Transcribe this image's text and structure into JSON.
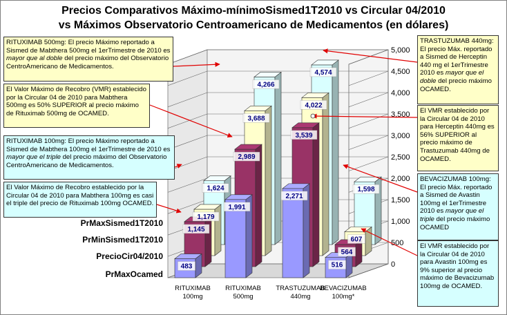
{
  "title_line1": "Precios Comparativos Máximo-mínimoSismed1T2010 vs Circular 04/2010",
  "title_line2": "vs Máximos Observatorio Centroamericano de Medicamentos (en dólares)",
  "chart_data": {
    "type": "bar",
    "subtype": "3d-grouped-bar",
    "categories": [
      "RITUXIMAB 100mg",
      "RITUXIMAB 500mg",
      "TRASTUZUMAB 440mg",
      "BEVACIZUMAB 100mg*"
    ],
    "category_lines": [
      [
        "RITUXIMAB",
        "100mg"
      ],
      [
        "RITUXIMAB",
        "500mg"
      ],
      [
        "TRASTUZUMAB",
        "440mg"
      ],
      [
        "BEVACIZUMAB",
        "100mg*"
      ]
    ],
    "series": [
      {
        "name": "PrMaxSismed1T2010",
        "values": [
          1624,
          4266,
          4574,
          1598
        ],
        "color": "#d9ffff"
      },
      {
        "name": "PrMinSismed1T2010",
        "values": [
          1179,
          3688,
          4022,
          607
        ],
        "color": "#ffffcc"
      },
      {
        "name": "PrecioCir04/2010",
        "values": [
          1145,
          2989,
          3539,
          564
        ],
        "color": "#993366"
      },
      {
        "name": "PrMaxOcamed",
        "values": [
          483,
          1991,
          2271,
          516
        ],
        "color": "#9999ff"
      }
    ],
    "data_labels": [
      [
        "1,624",
        "4,266",
        "4,574",
        "1,598"
      ],
      [
        "1,179",
        "3,688",
        "4,022",
        "607"
      ],
      [
        "1,145",
        "2,989",
        "3,539",
        "564"
      ],
      [
        "483",
        "1,991",
        "2,271",
        "516"
      ]
    ],
    "ylim": [
      0,
      5000
    ],
    "yticks": [
      "0",
      "500",
      "1,000",
      "1,500",
      "2,000",
      "2,500",
      "3,000",
      "3,500",
      "4,000",
      "4,500",
      "5,000"
    ],
    "ytick_values": [
      0,
      500,
      1000,
      1500,
      2000,
      2500,
      3000,
      3500,
      4000,
      4500,
      5000
    ],
    "grid": true,
    "label_color": "#000080"
  },
  "annotations": {
    "ritux500_max": {
      "pre": "RITUXIMAB 500mg: El precio Máximo reportado a Sismed de Mabthera 500mg el 1erTrimestre de 2010 es ",
      "em": "mayor que al doble",
      "post": " del precio máximo del Observatorio CentroAmericano de Medicamentos."
    },
    "ritux500_vmr": {
      "text": "El Valor Máximo de Recobro (VMR) establecido por la Circular 04 de 2010 para Mabthera 500mg es 50% SUPERIOR al precio máximo de Rituximab 500mg de OCAMED."
    },
    "ritux100_max": {
      "pre": "RITUXIMAB 100mg: El precio Máximo reportado a Sismed de Mabthera 100mg el 1erTrimestre de 2010 es ",
      "em": "mayor que el triple",
      "post": " del precio máximo del Observatorio CentroAmericano de Medicamentos."
    },
    "ritux100_vmr": {
      "text": "El Valor Máximo de Recobro establecido por la Circular 04 de 2010 para Mabthera 100mg es casi el triple del precio de Rituximab 100mg OCAMED."
    },
    "trastu_max": {
      "pre": "TRASTUZUMAB 440mg: El precio Máx. reportado a Sismed de Herceptin 440 mg el 1erTrimestre 2010 es ",
      "em": "mayor que el doble",
      "post": " del precio máximo OCAMED."
    },
    "trastu_vmr": {
      "text": "El VMR establecido por la Circular 04 de 2010 para Herceptin 440mg es 56% SUPERIOR al precio máximo de Trastuzumab 440mg de OCAMED."
    },
    "bevaci_max": {
      "pre": "BEVACIZUMAB 100mg: El precio Máx. reportado a Sismed de Avastin 100mg el 1erTrimestre 2010 es ",
      "em": "mayor que el triple",
      "post": " del precio máximo OCAMED"
    },
    "bevaci_vmr": {
      "text": "El VMR establecido por la Circular 04 de 2010 para Avastin 100mg es 9% superior al precio máximo de Bevacizumab 100mg de OCAMED."
    }
  }
}
